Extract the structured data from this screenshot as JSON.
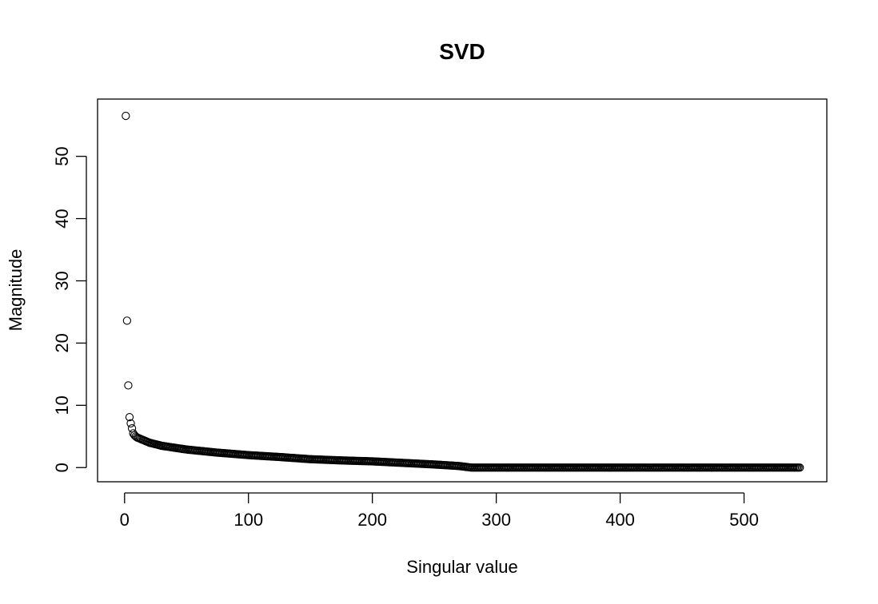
{
  "chart_data": {
    "type": "scatter",
    "title": "SVD",
    "xlabel": "Singular value",
    "ylabel": "Magnitude",
    "xlim": [
      -21.8,
      566.8
    ],
    "ylim": [
      -2.28,
      59.2
    ],
    "xticks": [
      0,
      100,
      200,
      300,
      400,
      500
    ],
    "yticks": [
      0,
      10,
      20,
      30,
      40,
      50
    ],
    "n_points": 545,
    "marker": "open-circle",
    "color": "#000000",
    "grid": false,
    "legend": "none",
    "series": [
      {
        "x_start": 1,
        "x_step": 1,
        "values_head": [
          56.5,
          23.6,
          13.2,
          8.1,
          7.1,
          6.3,
          5.5,
          5.2,
          5.0,
          4.85
        ],
        "curve_knots": [
          [
            10,
            4.85
          ],
          [
            20,
            4.0
          ],
          [
            30,
            3.5
          ],
          [
            50,
            2.9
          ],
          [
            75,
            2.4
          ],
          [
            100,
            2.0
          ],
          [
            125,
            1.7
          ],
          [
            150,
            1.35
          ],
          [
            175,
            1.15
          ],
          [
            200,
            1.0
          ],
          [
            225,
            0.75
          ],
          [
            250,
            0.5
          ],
          [
            270,
            0.25
          ],
          [
            280,
            0.0
          ],
          [
            545,
            0.0
          ]
        ]
      }
    ]
  }
}
